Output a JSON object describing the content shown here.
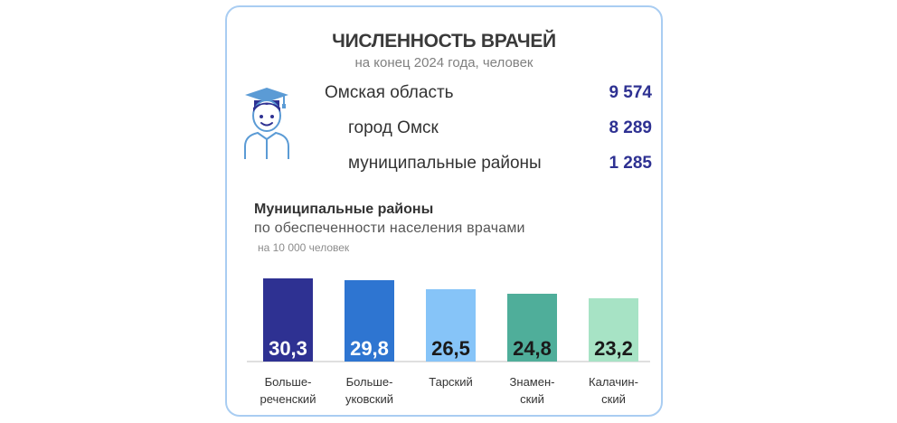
{
  "header": {
    "title": "ЧИСЛЕННОСТЬ ВРАЧЕЙ",
    "subtitle": "на конец 2024 года, человек"
  },
  "icon": "doctor-icon",
  "stats": [
    {
      "label": "Омская область",
      "value": "9 574"
    },
    {
      "label": "город Омск",
      "value": "8 289"
    },
    {
      "label": "муниципальные районы",
      "value": "1 285"
    }
  ],
  "section": {
    "title": "Муниципальные районы",
    "subtitle": "по обеспеченности населения врачами",
    "note": "на 10 000 человек"
  },
  "colors": {
    "border": "#a9cdf2",
    "stat_value": "#2e3192",
    "axis": "#bfbfbf"
  },
  "chart_data": {
    "type": "bar",
    "categories": [
      [
        "Больше-",
        "реченский"
      ],
      [
        "Больше-",
        "уковский"
      ],
      [
        "Тарский"
      ],
      [
        "Знамен-",
        "ский"
      ],
      [
        "Калачин-",
        "ский"
      ]
    ],
    "values": [
      30.3,
      29.8,
      26.5,
      24.8,
      23.2
    ],
    "value_labels": [
      "30,3",
      "29,8",
      "26,5",
      "24,8",
      "23,2"
    ],
    "bar_colors": [
      "#2e3192",
      "#2e75d1",
      "#86c4f8",
      "#4fae9a",
      "#a7e3c5"
    ],
    "label_colors": [
      "#ffffff",
      "#ffffff",
      "#1a1a1a",
      "#1a1a1a",
      "#1a1a1a"
    ],
    "ylim": [
      0,
      30.3
    ],
    "grid": false,
    "legend": "none",
    "xlabel": "",
    "ylabel": ""
  }
}
